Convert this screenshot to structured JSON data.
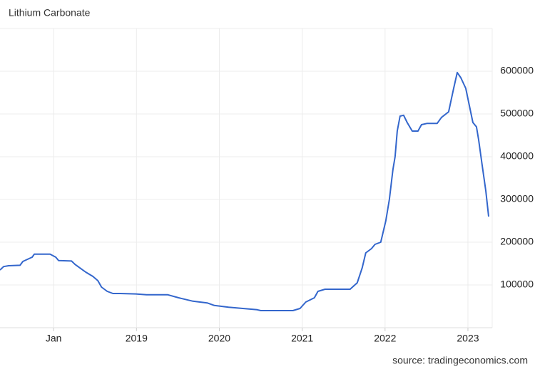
{
  "chart_data": {
    "type": "line",
    "title": "Lithium Carbonate",
    "source": "source: tradingeconomics.com",
    "x": [
      2017.353,
      2017.397,
      2017.457,
      2017.595,
      2017.629,
      2017.741,
      2017.767,
      2017.957,
      2018.026,
      2018.06,
      2018.216,
      2018.259,
      2018.302,
      2018.388,
      2018.474,
      2018.534,
      2018.578,
      2018.647,
      2018.716,
      2018.802,
      2018.991,
      2019.121,
      2019.379,
      2019.509,
      2019.681,
      2019.853,
      2019.94,
      2020.112,
      2020.284,
      2020.457,
      2020.5,
      2020.888,
      2020.974,
      2021.043,
      2021.147,
      2021.19,
      2021.276,
      2021.578,
      2021.664,
      2021.724,
      2021.767,
      2021.836,
      2021.879,
      2021.948,
      2022.009,
      2022.052,
      2022.095,
      2022.121,
      2022.147,
      2022.181,
      2022.224,
      2022.267,
      2022.328,
      2022.397,
      2022.44,
      2022.509,
      2022.629,
      2022.681,
      2022.767,
      2022.828,
      2022.871,
      2022.914,
      2022.974,
      2023.017,
      2023.06,
      2023.103,
      2023.129,
      2023.172,
      2023.216,
      2023.25
    ],
    "values": [
      135000,
      143000,
      145000,
      146000,
      155000,
      165000,
      172000,
      172000,
      165000,
      157000,
      156000,
      148000,
      142000,
      130000,
      120000,
      110000,
      95000,
      85000,
      80000,
      80000,
      79000,
      77000,
      77000,
      70000,
      62000,
      58000,
      52000,
      48000,
      45000,
      42000,
      40000,
      40000,
      45000,
      60000,
      70000,
      85000,
      90000,
      90000,
      105000,
      140000,
      175000,
      185000,
      195000,
      200000,
      250000,
      300000,
      370000,
      400000,
      460000,
      495000,
      497000,
      480000,
      460000,
      460000,
      475000,
      478000,
      478000,
      492000,
      505000,
      560000,
      597000,
      585000,
      560000,
      520000,
      480000,
      470000,
      440000,
      380000,
      320000,
      260000
    ],
    "color": "#3366cc",
    "xlim": [
      2017.353,
      2023.293
    ],
    "xticks": [
      {
        "value": 2018,
        "label": "Jan"
      },
      2019,
      2020,
      2021,
      2022,
      2023
    ],
    "ylim": [
      0,
      700000
    ],
    "yticks": [
      100000,
      200000,
      300000,
      400000,
      500000,
      600000
    ],
    "grid": true
  }
}
